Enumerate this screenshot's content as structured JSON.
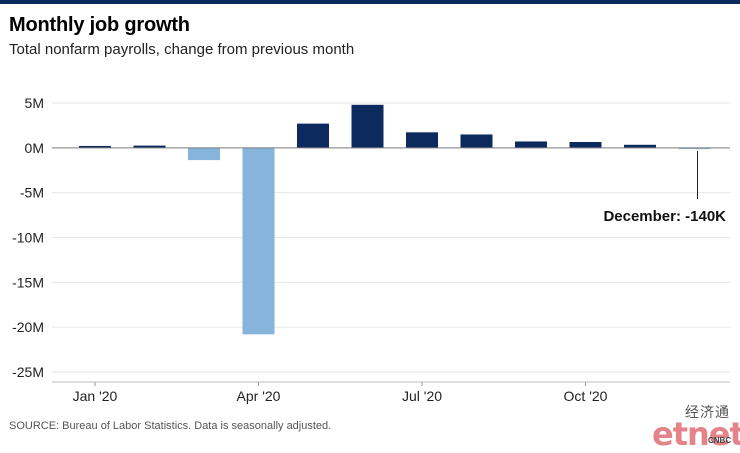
{
  "header": {
    "title": "Monthly job growth",
    "subtitle": "Total nonfarm payrolls, change from previous month"
  },
  "footer": {
    "source": "SOURCE: Bureau of Labor Statistics. Data is seasonally adjusted."
  },
  "logo": {
    "chinese": "经济通",
    "main": "etnet",
    "sub": "CNBC"
  },
  "colors": {
    "positive": "#0c2a5e",
    "negative": "#86b4db",
    "grid": "#e6e6e6",
    "zero_line": "#7a7a7a",
    "top_rule": "#0c2a5e"
  },
  "chart_data": {
    "type": "bar",
    "title": "Monthly job growth",
    "subtitle": "Total nonfarm payrolls, change from previous month",
    "categories": [
      "Jan 2020",
      "Feb 2020",
      "Mar 2020",
      "Apr 2020",
      "May 2020",
      "Jun 2020",
      "Jul 2020",
      "Aug 2020",
      "Sep 2020",
      "Oct 2020",
      "Nov 2020",
      "Dec 2020"
    ],
    "values": [
      0.21,
      0.25,
      -1.37,
      -20.8,
      2.7,
      4.8,
      1.73,
      1.49,
      0.71,
      0.65,
      0.34,
      -0.14
    ],
    "unit": "millions",
    "ylim": [
      -25,
      5
    ],
    "yticks": [
      5,
      0,
      -5,
      -10,
      -15,
      -20,
      -25
    ],
    "ytick_labels": [
      "5M",
      "0M",
      "-5M",
      "-10M",
      "-15M",
      "-20M",
      "-25M"
    ],
    "xtick_labels": [
      {
        "index": 0,
        "label": "Jan '20"
      },
      {
        "index": 3,
        "label": "Apr '20"
      },
      {
        "index": 6,
        "label": "Jul '20"
      },
      {
        "index": 9,
        "label": "Oct '20"
      }
    ],
    "annotation": {
      "index": 11,
      "text": "December: -140K"
    },
    "grid": true
  }
}
